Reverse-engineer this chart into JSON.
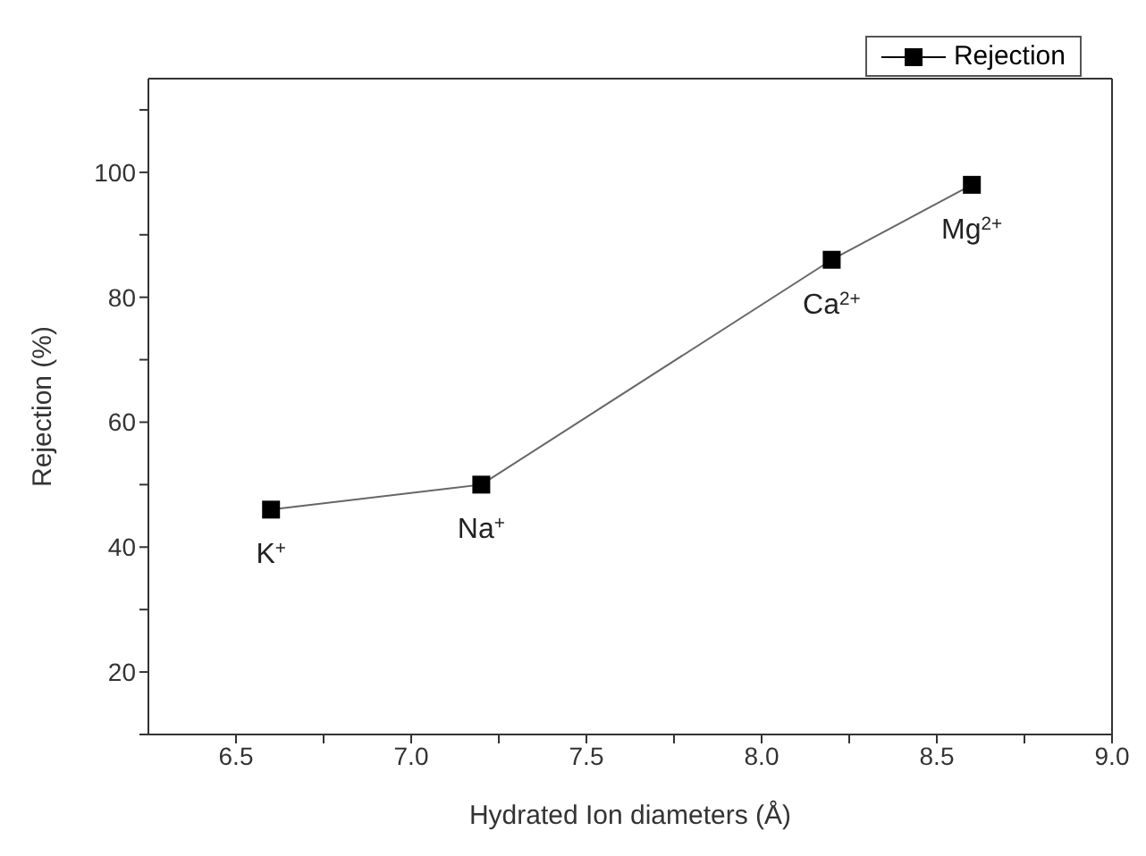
{
  "chart_data": {
    "type": "line",
    "xlabel": "Hydrated Ion diameters (Å)",
    "ylabel": "Rejection (%)",
    "x": [
      6.6,
      7.2,
      8.2,
      8.6
    ],
    "series": [
      {
        "name": "Rejection",
        "color": "#000000",
        "values": [
          46,
          50,
          86,
          98
        ]
      }
    ],
    "xlim": [
      6.25,
      9.0
    ],
    "xticks": [
      6.5,
      {
        "value": 6.75,
        "label": null
      },
      "7.0",
      {
        "value": 7.25,
        "label": null
      },
      7.5,
      {
        "value": 7.75,
        "label": null
      },
      "8.0",
      {
        "value": 8.25,
        "label": null
      },
      8.5,
      {
        "value": 8.75,
        "label": null
      },
      "9.0"
    ],
    "ylim": [
      10,
      115
    ],
    "yticks": [
      {
        "value": 10,
        "label": null
      },
      20,
      {
        "value": 30,
        "label": null
      },
      40,
      {
        "value": 50,
        "label": null
      },
      60,
      {
        "value": 70,
        "label": null
      },
      80,
      {
        "value": 90,
        "label": null
      },
      100,
      {
        "value": 110,
        "label": null
      }
    ],
    "annotations": [
      {
        "text": "K$^{+}$",
        "x": 6.6,
        "y": 46
      },
      {
        "text": "Na$^{+}$",
        "x": 7.2,
        "y": 50
      },
      {
        "text": "Ca$^{2+}$",
        "x": 8.2,
        "y": 86
      },
      {
        "text": "Mg$^{2+}$",
        "x": 8.6,
        "y": 98
      }
    ],
    "marker": "square",
    "line_style": "solid",
    "grid": false,
    "legend": "top right"
  }
}
